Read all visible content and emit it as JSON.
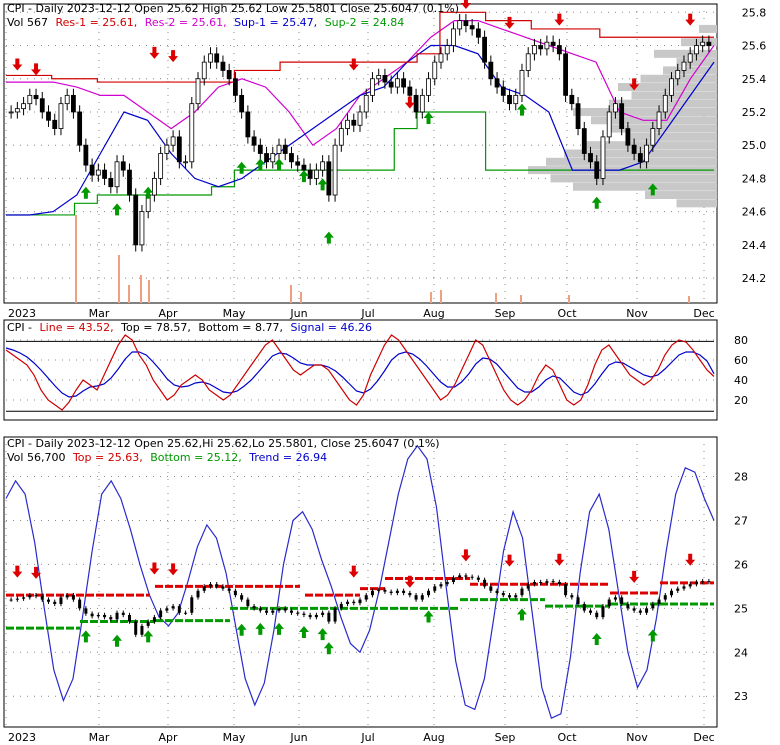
{
  "chart_data": [
    {
      "type": "candlestick",
      "panel": "price",
      "header": {
        "symbol": "CPI - Daily 2023-12-12 Open 25.62  High 25.62  Low 25.5801  Close 25.6047 (0.1%)",
        "vol": "Vol 567",
        "res1": "Res-1 = 25.61,",
        "res2": "Res-2 = 25.61,",
        "sup1": "Sup-1 = 25.47,",
        "sup2": "Sup-2 = 24.84"
      },
      "x_labels": [
        "2023",
        "Mar",
        "Apr",
        "May",
        "Jun",
        "Jul",
        "Aug",
        "Sep",
        "Oct",
        "Nov",
        "Dec"
      ],
      "y_ticks": [
        "25.8",
        "25.6",
        "25.4",
        "25.2",
        "25.0",
        "24.8",
        "24.6",
        "24.4",
        "24.2"
      ],
      "ylim": [
        24.05,
        25.85
      ],
      "close_series": [
        25.2,
        25.22,
        25.25,
        25.3,
        25.28,
        25.2,
        25.15,
        25.1,
        25.25,
        25.3,
        25.2,
        25.0,
        24.88,
        24.82,
        24.85,
        24.8,
        24.75,
        24.9,
        24.85,
        24.7,
        24.4,
        24.6,
        24.7,
        24.8,
        24.95,
        25.0,
        25.05,
        24.9,
        24.9,
        25.25,
        25.4,
        25.5,
        25.55,
        25.5,
        25.45,
        25.4,
        25.3,
        25.2,
        25.05,
        25.0,
        24.95,
        24.9,
        24.95,
        25.0,
        24.95,
        24.9,
        24.88,
        24.85,
        24.8,
        24.85,
        24.9,
        24.7,
        25.0,
        25.1,
        25.15,
        25.12,
        25.2,
        25.3,
        25.4,
        25.42,
        25.38,
        25.35,
        25.4,
        25.35,
        25.3,
        25.2,
        25.3,
        25.4,
        25.5,
        25.55,
        25.6,
        25.7,
        25.75,
        25.72,
        25.7,
        25.65,
        25.5,
        25.4,
        25.35,
        25.3,
        25.25,
        25.3,
        25.45,
        25.55,
        25.6,
        25.58,
        25.62,
        25.6,
        25.55,
        25.3,
        25.25,
        25.1,
        24.95,
        24.9,
        24.8,
        25.05,
        25.2,
        25.25,
        25.1,
        25.0,
        24.95,
        24.9,
        25.0,
        25.1,
        25.2,
        25.3,
        25.4,
        25.45,
        25.5,
        25.55,
        25.6,
        25.62,
        25.6
      ],
      "res1_line": [
        25.42,
        25.42,
        25.4,
        25.4,
        25.38,
        25.38,
        25.38,
        25.38,
        25.38,
        25.38,
        25.45,
        25.45,
        25.5,
        25.5,
        25.5,
        25.5,
        25.5,
        25.5,
        25.55,
        25.8,
        25.8,
        25.75,
        25.75,
        25.7,
        25.7,
        25.7,
        25.65,
        25.65,
        25.65,
        25.65,
        25.65
      ],
      "res2_line": [
        25.38,
        25.38,
        25.38,
        25.35,
        25.3,
        25.3,
        25.2,
        25.1,
        25.2,
        25.35,
        25.4,
        25.35,
        25.2,
        25.0,
        25.1,
        25.3,
        25.4,
        25.5,
        25.65,
        25.75,
        25.75,
        25.7,
        25.65,
        25.6,
        25.55,
        25.5,
        25.2,
        25.15,
        25.15,
        25.4,
        25.6
      ],
      "sup1_line": [
        24.58,
        24.58,
        24.6,
        24.7,
        24.95,
        25.2,
        25.15,
        24.95,
        24.8,
        24.75,
        24.8,
        24.9,
        25.0,
        25.1,
        25.2,
        25.3,
        25.35,
        25.5,
        25.6,
        25.6,
        25.55,
        25.35,
        25.3,
        25.2,
        24.85,
        24.85,
        24.85,
        24.9,
        25.1,
        25.3,
        25.5
      ],
      "sup2_line": [
        24.58,
        24.58,
        24.58,
        24.65,
        24.7,
        24.7,
        24.7,
        24.7,
        24.7,
        24.75,
        24.85,
        24.85,
        24.85,
        24.85,
        24.85,
        24.85,
        24.85,
        25.1,
        25.2,
        25.2,
        25.2,
        24.85,
        24.85,
        24.85,
        24.85,
        24.85,
        24.85,
        24.85,
        24.85,
        24.85,
        24.85
      ],
      "up_arrows": [
        [
          12,
          24.75
        ],
        [
          17,
          24.65
        ],
        [
          22,
          24.75
        ],
        [
          37,
          24.9
        ],
        [
          40,
          24.92
        ],
        [
          43,
          24.92
        ],
        [
          47,
          24.85
        ],
        [
          50,
          24.8
        ],
        [
          51,
          24.48
        ],
        [
          67,
          25.2
        ],
        [
          82,
          25.25
        ],
        [
          94,
          24.69
        ],
        [
          103,
          24.77
        ]
      ],
      "down_arrows": [
        [
          1,
          25.45
        ],
        [
          4,
          25.42
        ],
        [
          23,
          25.52
        ],
        [
          26,
          25.5
        ],
        [
          55,
          25.45
        ],
        [
          64,
          25.22
        ],
        [
          73,
          25.82
        ],
        [
          80,
          25.7
        ],
        [
          88,
          25.72
        ],
        [
          100,
          25.33
        ],
        [
          109,
          25.72
        ]
      ]
    },
    {
      "type": "line",
      "panel": "oscillator",
      "header": {
        "symbol": "CPI -",
        "line": "Line = 43.52,",
        "top": "Top = 78.57,",
        "bottom": "Bottom = 8.77,",
        "signal": "Signal = 46.26"
      },
      "y_ticks": [
        "80",
        "60",
        "40",
        "20"
      ],
      "ylim": [
        0,
        100
      ],
      "top_line": [
        78.57
      ],
      "bottom_line": [
        8.77
      ],
      "line_series": [
        70,
        65,
        60,
        55,
        45,
        30,
        20,
        15,
        10,
        18,
        30,
        40,
        35,
        30,
        45,
        60,
        75,
        85,
        80,
        65,
        55,
        40,
        30,
        20,
        25,
        35,
        40,
        45,
        40,
        30,
        25,
        20,
        25,
        35,
        45,
        55,
        65,
        75,
        80,
        70,
        60,
        50,
        45,
        50,
        55,
        55,
        50,
        40,
        30,
        20,
        15,
        25,
        45,
        60,
        75,
        85,
        80,
        70,
        60,
        50,
        40,
        30,
        20,
        25,
        35,
        50,
        65,
        80,
        75,
        60,
        45,
        30,
        20,
        15,
        20,
        30,
        45,
        55,
        50,
        35,
        20,
        15,
        20,
        35,
        55,
        70,
        75,
        65,
        55,
        45,
        40,
        35,
        40,
        50,
        65,
        75,
        80,
        78,
        70,
        60,
        50,
        43.52
      ],
      "signal_series": [
        72,
        70,
        67,
        63,
        57,
        50,
        42,
        34,
        27,
        23,
        24,
        29,
        33,
        34,
        36,
        42,
        51,
        61,
        68,
        68,
        65,
        58,
        50,
        41,
        35,
        33,
        34,
        37,
        38,
        36,
        32,
        28,
        27,
        29,
        34,
        40,
        48,
        56,
        64,
        67,
        66,
        62,
        57,
        55,
        55,
        55,
        53,
        49,
        43,
        36,
        29,
        27,
        31,
        39,
        49,
        60,
        66,
        68,
        66,
        61,
        54,
        46,
        38,
        33,
        33,
        38,
        46,
        56,
        62,
        61,
        56,
        48,
        40,
        32,
        28,
        28,
        33,
        40,
        44,
        42,
        35,
        28,
        25,
        28,
        36,
        46,
        55,
        58,
        57,
        53,
        49,
        45,
        43,
        45,
        51,
        58,
        65,
        68,
        68,
        65,
        59,
        46.26
      ]
    },
    {
      "type": "candlestick",
      "panel": "trend",
      "header": {
        "symbol": "CPI - Daily 2023-12-12 Open 25.62,Hi 25.62,Lo 25.5801,  Close 25.6047 (0.1%)",
        "vol": "Vol 56,700",
        "top": "Top = 25.63,",
        "bottom": "Bottom = 25.12,",
        "trend": "Trend = 26.94"
      },
      "x_labels": [
        "2023",
        "Mar",
        "Apr",
        "May",
        "Jun",
        "Jul",
        "Aug",
        "Sep",
        "Oct",
        "Nov",
        "Dec"
      ],
      "y_ticks": [
        "28",
        "27",
        "26",
        "25",
        "24",
        "23"
      ],
      "ylim": [
        22.3,
        28.9
      ],
      "trend_series": [
        27.5,
        27.9,
        27.6,
        26.5,
        25.0,
        23.6,
        22.9,
        23.4,
        24.8,
        26.3,
        27.6,
        27.9,
        27.5,
        26.8,
        26.0,
        25.3,
        24.8,
        24.6,
        24.9,
        25.6,
        26.4,
        26.9,
        26.6,
        25.8,
        24.6,
        23.4,
        22.8,
        23.3,
        24.5,
        26.0,
        27.0,
        27.2,
        26.8,
        26.1,
        25.5,
        24.8,
        24.2,
        24.0,
        24.5,
        25.4,
        26.5,
        27.6,
        28.4,
        28.7,
        28.4,
        27.3,
        25.5,
        23.8,
        22.8,
        22.7,
        23.4,
        24.8,
        26.3,
        27.2,
        26.6,
        24.9,
        23.2,
        22.5,
        22.6,
        23.9,
        25.8,
        27.2,
        27.6,
        26.8,
        25.4,
        24.0,
        23.2,
        23.6,
        24.8,
        26.3,
        27.6,
        28.2,
        28.1,
        27.5,
        27.0
      ]
    }
  ]
}
